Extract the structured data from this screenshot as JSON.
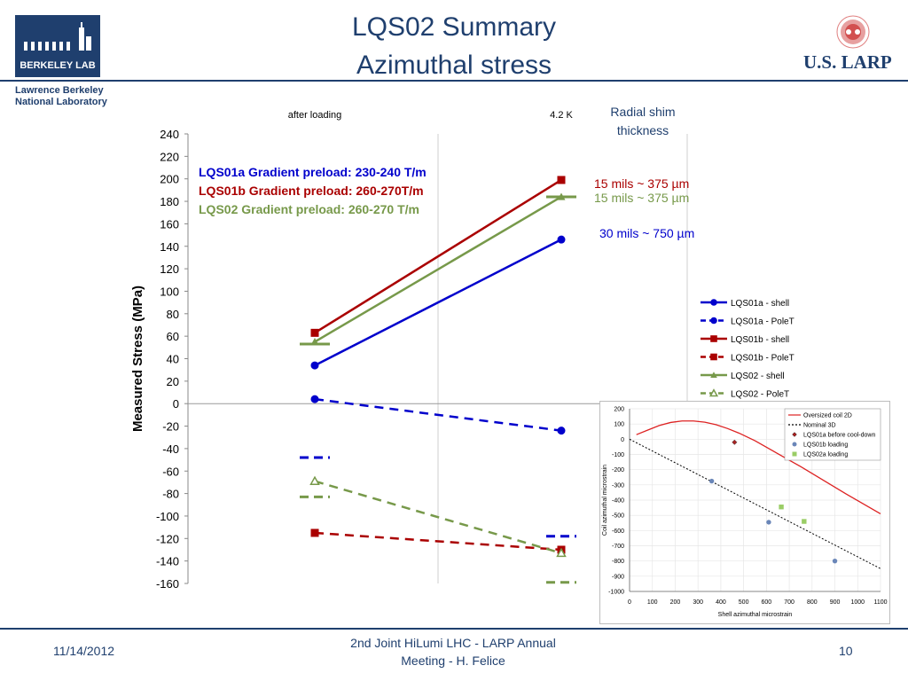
{
  "header": {
    "title_line1": "LQS02 Summary",
    "title_line2": "Azimuthal stress",
    "logo_left": "BERKELEY LAB",
    "lab_name_line1": "Lawrence Berkeley",
    "lab_name_line2": "National Laboratory",
    "logo_right": "U.S. LARP"
  },
  "footer": {
    "date": "11/14/2012",
    "center_line1": "2nd Joint HiLumi LHC - LARP Annual",
    "center_line2": "Meeting - H. Felice",
    "page": "10"
  },
  "colors": {
    "brand": "#1f3f6e",
    "lqs01a": "#0000cc",
    "lqs01b": "#aa0000",
    "lqs02": "#77994a"
  },
  "chart_data": [
    {
      "type": "line",
      "column_labels": [
        "after loading",
        "4.2 K"
      ],
      "ylabel": "Measured Stress (MPa)",
      "ylim": [
        -160,
        240
      ],
      "yticks": [
        240,
        220,
        200,
        180,
        160,
        140,
        120,
        100,
        80,
        60,
        40,
        20,
        0,
        -20,
        -40,
        -60,
        -80,
        -100,
        -120,
        -140,
        -160
      ],
      "series": [
        {
          "name": "LQS01a - shell",
          "values": [
            34,
            146
          ],
          "color": "#0000cc",
          "style": "solid",
          "marker": "circle"
        },
        {
          "name": "LQS01a - PoleT",
          "values": [
            4,
            -24
          ],
          "color": "#0000cc",
          "style": "dashed",
          "marker": "circle"
        },
        {
          "name": "LQS01b - shell",
          "values": [
            63,
            199
          ],
          "color": "#aa0000",
          "style": "solid",
          "marker": "square"
        },
        {
          "name": "LQS01b - PoleT",
          "values": [
            -115,
            -130
          ],
          "color": "#aa0000",
          "style": "dashed",
          "marker": "square"
        },
        {
          "name": "LQS02 - shell",
          "values": [
            55,
            184
          ],
          "color": "#77994a",
          "style": "solid",
          "marker": "triangle"
        },
        {
          "name": "LQS02 - PoleT",
          "values": [
            -69,
            -133
          ],
          "color": "#77994a",
          "style": "dashed",
          "marker": "triangle-open"
        }
      ],
      "target_bars": [
        {
          "col": 0,
          "y": 53,
          "color": "#77994a",
          "style": "solid"
        },
        {
          "col": 0,
          "y": -48,
          "color": "#0000cc",
          "style": "dashed"
        },
        {
          "col": 0,
          "y": -83,
          "color": "#77994a",
          "style": "dashed"
        },
        {
          "col": 1,
          "y": 184,
          "color": "#77994a",
          "style": "solid"
        },
        {
          "col": 1,
          "y": -118,
          "color": "#0000cc",
          "style": "dashed"
        },
        {
          "col": 1,
          "y": -159,
          "color": "#77994a",
          "style": "dashed"
        }
      ],
      "annotations": [
        {
          "text": "LQS01a Gradient preload: 230-240 T/m",
          "color": "#0000cc"
        },
        {
          "text": "LQS01b Gradient preload: 260-270T/m",
          "color": "#aa0000"
        },
        {
          "text": "LQS02 Gradient preload: 260-270 T/m",
          "color": "#77994a"
        }
      ],
      "shim_header": [
        "Radial shim",
        "thickness"
      ],
      "shim_labels": [
        {
          "text": "15 mils  ~ 375 µm",
          "color": "#aa0000",
          "y": 199
        },
        {
          "text": "15 mils  ~ 375 µm",
          "color": "#77994a",
          "y": 186
        },
        {
          "text": "30 mils  ~ 750 µm",
          "color": "#0000cc",
          "y": 150
        }
      ],
      "legend_position": "right",
      "grid": "vertical-only"
    },
    {
      "type": "scatter",
      "xlabel": "Shell azimuthal microstrain",
      "ylabel": "Coil azimuthal microstrain",
      "xlim": [
        0,
        1100
      ],
      "ylim": [
        -1000,
        200
      ],
      "xticks": [
        0,
        100,
        200,
        300,
        400,
        500,
        600,
        700,
        800,
        900,
        1000,
        1100
      ],
      "yticks": [
        200,
        100,
        0,
        -100,
        -200,
        -300,
        -400,
        -500,
        -600,
        -700,
        -800,
        -900,
        -1000
      ],
      "curve_oversized": {
        "name": "Oversized coil 2D",
        "color": "#dd2222",
        "x": [
          30,
          80,
          130,
          180,
          230,
          280,
          330,
          380,
          430,
          480,
          550,
          650,
          750,
          850,
          950,
          1100
        ],
        "y": [
          30,
          60,
          90,
          110,
          120,
          120,
          112,
          95,
          70,
          40,
          -10,
          -95,
          -180,
          -270,
          -360,
          -490
        ]
      },
      "line_nominal": {
        "name": "Nominal 3D",
        "color": "#000000",
        "x": [
          0,
          1100
        ],
        "y": [
          0,
          -850
        ]
      },
      "points": [
        {
          "name": "LQS01a before cool-down",
          "color": "#aa2222",
          "marker": "diamond",
          "data": [
            [
              460,
              -20
            ]
          ]
        },
        {
          "name": "LQS01b loading",
          "color": "#6a86b8",
          "marker": "circle",
          "data": [
            [
              360,
              -275
            ],
            [
              610,
              -545
            ],
            [
              900,
              -800
            ]
          ]
        },
        {
          "name": "LQS02a loading",
          "color": "#9acd66",
          "marker": "square",
          "data": [
            [
              665,
              -445
            ],
            [
              765,
              -540
            ]
          ]
        }
      ]
    }
  ]
}
